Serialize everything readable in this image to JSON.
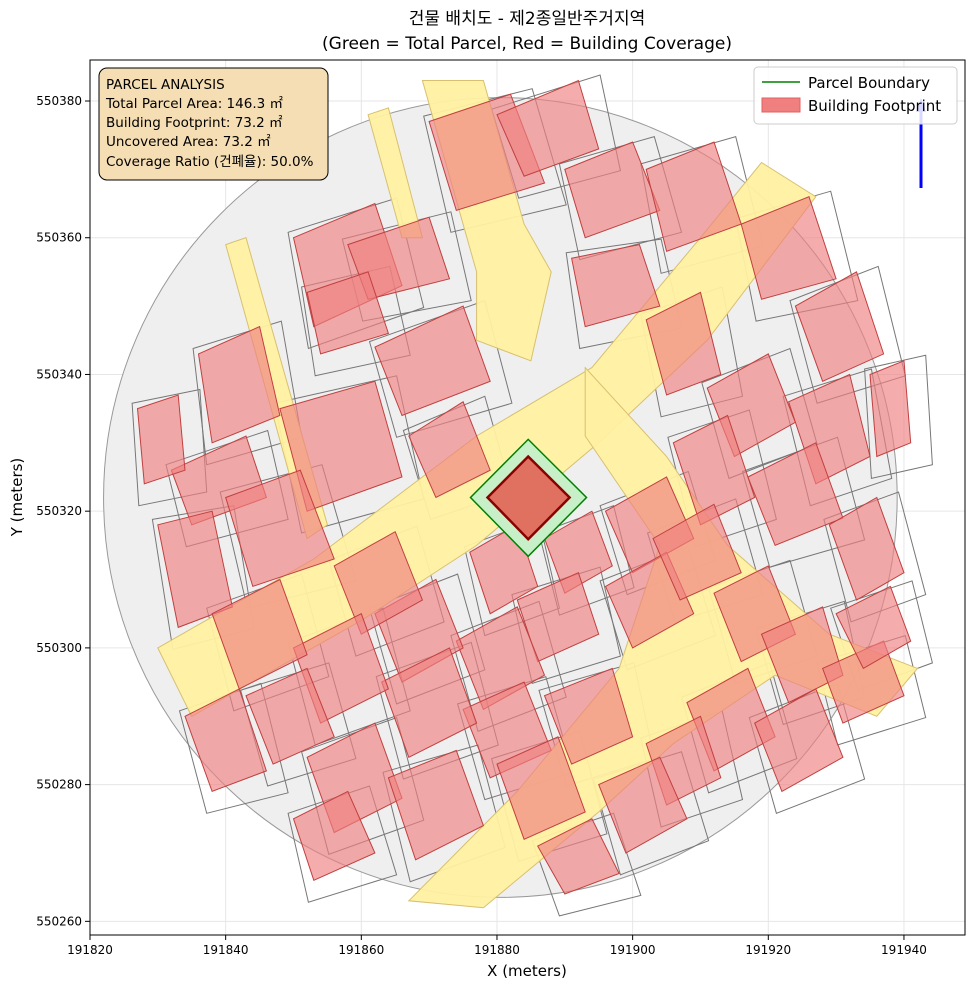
{
  "figure": {
    "title_line1": "건물 배치도 - 제2종일반주거지역",
    "title_line2": "(Green = Total Parcel, Red = Building Coverage)",
    "xlabel": "X (meters)",
    "ylabel": "Y (meters)"
  },
  "annotation": {
    "heading": "PARCEL ANALYSIS",
    "total_area": "Total Parcel Area: 146.3 ㎡",
    "footprint": "Building Footprint: 73.2 ㎡",
    "uncovered": "Uncovered Area: 73.2 ㎡",
    "coverage": "Coverage Ratio (건폐율): 50.0%"
  },
  "legend": {
    "parcel_label": "Parcel Boundary",
    "footprint_label": "Building Footprint",
    "placement": "top-right"
  },
  "colors": {
    "parcel_line": "#008000",
    "parcel_fill": "#c8f0c8",
    "building_fill": "#f08080",
    "building_edge": "#8b0000",
    "road_fill": "#fff0a0",
    "context_fill": "#efefef",
    "north_arrow": "#0000ff",
    "annotation_bg": "#f5deb3"
  },
  "chart_data": {
    "type": "map",
    "xlim": [
      191820,
      191949
    ],
    "ylim": [
      550258,
      550386
    ],
    "grid": true,
    "xticks": [
      "191820",
      "191840",
      "191860",
      "191880",
      "191900",
      "191920",
      "191940"
    ],
    "yticks": [
      "550260",
      "550280",
      "550300",
      "550320",
      "550340",
      "550360",
      "550380"
    ],
    "xtick_values": [
      191820,
      191840,
      191860,
      191880,
      191900,
      191920,
      191940
    ],
    "ytick_values": [
      550260,
      550280,
      550300,
      550320,
      550340,
      550360,
      550380
    ],
    "site_circle": {
      "cx": 191880.5,
      "cy": 550322,
      "r": 58.5
    },
    "parcel": [
      [
        191884.6,
        550330.5
      ],
      [
        191893.2,
        550322
      ],
      [
        191884.6,
        550313.4
      ],
      [
        191876.1,
        550322
      ]
    ],
    "footprint": [
      [
        191884.6,
        550328.0
      ],
      [
        191890.7,
        550322
      ],
      [
        191884.6,
        550315.9
      ],
      [
        191878.6,
        550322
      ]
    ],
    "roads": [
      [
        [
          191830,
          550300
        ],
        [
          191853,
          550313
        ],
        [
          191877,
          550331
        ],
        [
          191894,
          550341
        ],
        [
          191910,
          550360
        ],
        [
          191919,
          550371
        ],
        [
          191927,
          550366
        ],
        [
          191911,
          550345
        ],
        [
          191895,
          550330
        ],
        [
          191877,
          550315
        ],
        [
          191860,
          550304
        ],
        [
          191835,
          550290
        ]
      ],
      [
        [
          191893,
          550341
        ],
        [
          191905,
          550328
        ],
        [
          191914,
          550315
        ],
        [
          191929,
          550302
        ],
        [
          191942,
          550297
        ],
        [
          191936,
          550290
        ],
        [
          191921,
          550296
        ],
        [
          191906,
          550286
        ],
        [
          191895,
          550276
        ],
        [
          191878,
          550262
        ],
        [
          191867,
          550263
        ],
        [
          191883,
          550279
        ],
        [
          191898,
          550297
        ],
        [
          191904,
          550315
        ],
        [
          191893,
          550331
        ]
      ],
      [
        [
          191869,
          550383
        ],
        [
          191878,
          550383
        ],
        [
          191884,
          550362
        ],
        [
          191888,
          550355
        ],
        [
          191885,
          550342
        ],
        [
          191877,
          550345
        ],
        [
          191877,
          550355
        ]
      ],
      [
        [
          191840,
          550359
        ],
        [
          191843,
          550360
        ],
        [
          191855,
          550318
        ],
        [
          191852,
          550316
        ]
      ],
      [
        [
          191861,
          550378
        ],
        [
          191864,
          550379
        ],
        [
          191869,
          550360
        ],
        [
          191866,
          550360
        ]
      ]
    ],
    "context_buildings": [
      [
        [
          191850,
          550360
        ],
        [
          191862,
          550365
        ],
        [
          191866,
          550353
        ],
        [
          191853,
          550347
        ]
      ],
      [
        [
          191858,
          550359
        ],
        [
          191870,
          550363
        ],
        [
          191873,
          550354
        ],
        [
          191861,
          550351
        ]
      ],
      [
        [
          191836,
          550343
        ],
        [
          191845,
          550347
        ],
        [
          191848,
          550334
        ],
        [
          191838,
          550330
        ]
      ],
      [
        [
          191852,
          550352
        ],
        [
          191861,
          550355
        ],
        [
          191864,
          550346
        ],
        [
          191854,
          550343
        ]
      ],
      [
        [
          191862,
          550344
        ],
        [
          191875,
          550350
        ],
        [
          191879,
          550339
        ],
        [
          191866,
          550334
        ]
      ],
      [
        [
          191848,
          550335
        ],
        [
          191862,
          550339
        ],
        [
          191866,
          550325
        ],
        [
          191852,
          550320
        ]
      ],
      [
        [
          191832,
          550326
        ],
        [
          191843,
          550331
        ],
        [
          191846,
          550322
        ],
        [
          191835,
          550318
        ]
      ],
      [
        [
          191830,
          550318
        ],
        [
          191838,
          550320
        ],
        [
          191841,
          550306
        ],
        [
          191833,
          550303
        ]
      ],
      [
        [
          191840,
          550322
        ],
        [
          191851,
          550326
        ],
        [
          191856,
          550313
        ],
        [
          191844,
          550309
        ]
      ],
      [
        [
          191827,
          550335
        ],
        [
          191833,
          550337
        ],
        [
          191834,
          550326
        ],
        [
          191828,
          550324
        ]
      ],
      [
        [
          191867,
          550331
        ],
        [
          191875,
          550336
        ],
        [
          191879,
          550326
        ],
        [
          191871,
          550322
        ]
      ],
      [
        [
          191870,
          550377
        ],
        [
          191882,
          550381
        ],
        [
          191887,
          550368
        ],
        [
          191874,
          550364
        ]
      ],
      [
        [
          191880,
          550378
        ],
        [
          191892,
          550383
        ],
        [
          191895,
          550373
        ],
        [
          191884,
          550369
        ]
      ],
      [
        [
          191890,
          550370
        ],
        [
          191900,
          550374
        ],
        [
          191904,
          550364
        ],
        [
          191893,
          550360
        ]
      ],
      [
        [
          191902,
          550370
        ],
        [
          191912,
          550374
        ],
        [
          191916,
          550362
        ],
        [
          191905,
          550358
        ]
      ],
      [
        [
          191891,
          550357
        ],
        [
          191901,
          550359
        ],
        [
          191904,
          550350
        ],
        [
          191893,
          550347
        ]
      ],
      [
        [
          191916,
          550362
        ],
        [
          191926,
          550366
        ],
        [
          191930,
          550354
        ],
        [
          191919,
          550351
        ]
      ],
      [
        [
          191902,
          550348
        ],
        [
          191910,
          550352
        ],
        [
          191913,
          550340
        ],
        [
          191905,
          550337
        ]
      ],
      [
        [
          191924,
          550350
        ],
        [
          191933,
          550355
        ],
        [
          191937,
          550343
        ],
        [
          191928,
          550339
        ]
      ],
      [
        [
          191911,
          550338
        ],
        [
          191920,
          550343
        ],
        [
          191924,
          550333
        ],
        [
          191915,
          550328
        ]
      ],
      [
        [
          191923,
          550336
        ],
        [
          191932,
          550340
        ],
        [
          191935,
          550328
        ],
        [
          191927,
          550324
        ]
      ],
      [
        [
          191935,
          550340
        ],
        [
          191940,
          550342
        ],
        [
          191941,
          550330
        ],
        [
          191936,
          550328
        ]
      ],
      [
        [
          191906,
          550330
        ],
        [
          191914,
          550334
        ],
        [
          191918,
          550322
        ],
        [
          191910,
          550318
        ]
      ],
      [
        [
          191917,
          550325
        ],
        [
          191927,
          550330
        ],
        [
          191931,
          550319
        ],
        [
          191921,
          550315
        ]
      ],
      [
        [
          191929,
          550318
        ],
        [
          191936,
          550322
        ],
        [
          191940,
          550311
        ],
        [
          191933,
          550307
        ]
      ],
      [
        [
          191896,
          550320
        ],
        [
          191905,
          550325
        ],
        [
          191909,
          550316
        ],
        [
          191900,
          550311
        ]
      ],
      [
        [
          191887,
          550316
        ],
        [
          191894,
          550320
        ],
        [
          191897,
          550312
        ],
        [
          191890,
          550308
        ]
      ],
      [
        [
          191876,
          550314
        ],
        [
          191883,
          550318
        ],
        [
          191886,
          550309
        ],
        [
          191879,
          550305
        ]
      ],
      [
        [
          191883,
          550307
        ],
        [
          191892,
          550311
        ],
        [
          191895,
          550302
        ],
        [
          191886,
          550298
        ]
      ],
      [
        [
          191896,
          550309
        ],
        [
          191905,
          550314
        ],
        [
          191909,
          550305
        ],
        [
          191900,
          550300
        ]
      ],
      [
        [
          191903,
          550316
        ],
        [
          191912,
          550321
        ],
        [
          191916,
          550311
        ],
        [
          191907,
          550307
        ]
      ],
      [
        [
          191912,
          550308
        ],
        [
          191920,
          550312
        ],
        [
          191924,
          550302
        ],
        [
          191916,
          550298
        ]
      ],
      [
        [
          191919,
          550302
        ],
        [
          191928,
          550306
        ],
        [
          191931,
          550296
        ],
        [
          191923,
          550292
        ]
      ],
      [
        [
          191928,
          550297
        ],
        [
          191937,
          550301
        ],
        [
          191940,
          550293
        ],
        [
          191931,
          550289
        ]
      ],
      [
        [
          191930,
          550305
        ],
        [
          191938,
          550309
        ],
        [
          191941,
          550301
        ],
        [
          191934,
          550297
        ]
      ],
      [
        [
          191908,
          550292
        ],
        [
          191917,
          550297
        ],
        [
          191921,
          550287
        ],
        [
          191912,
          550282
        ]
      ],
      [
        [
          191918,
          550289
        ],
        [
          191927,
          550294
        ],
        [
          191931,
          550284
        ],
        [
          191922,
          550279
        ]
      ],
      [
        [
          191902,
          550286
        ],
        [
          191910,
          550290
        ],
        [
          191913,
          550281
        ],
        [
          191905,
          550277
        ]
      ],
      [
        [
          191895,
          550280
        ],
        [
          191904,
          550284
        ],
        [
          191908,
          550275
        ],
        [
          191899,
          550270
        ]
      ],
      [
        [
          191887,
          550293
        ],
        [
          191897,
          550297
        ],
        [
          191900,
          550287
        ],
        [
          191891,
          550283
        ]
      ],
      [
        [
          191874,
          550301
        ],
        [
          191883,
          550306
        ],
        [
          191887,
          550296
        ],
        [
          191878,
          550291
        ]
      ],
      [
        [
          191875,
          550291
        ],
        [
          191884,
          550295
        ],
        [
          191888,
          550285
        ],
        [
          191879,
          550281
        ]
      ],
      [
        [
          191862,
          550305
        ],
        [
          191871,
          550310
        ],
        [
          191875,
          550300
        ],
        [
          191866,
          550295
        ]
      ],
      [
        [
          191856,
          550312
        ],
        [
          191865,
          550317
        ],
        [
          191869,
          550307
        ],
        [
          191860,
          550302
        ]
      ],
      [
        [
          191863,
          550295
        ],
        [
          191873,
          550300
        ],
        [
          191877,
          550289
        ],
        [
          191867,
          550284
        ]
      ],
      [
        [
          191850,
          550300
        ],
        [
          191860,
          550305
        ],
        [
          191864,
          550294
        ],
        [
          191854,
          550289
        ]
      ],
      [
        [
          191838,
          550305
        ],
        [
          191848,
          550310
        ],
        [
          191852,
          550299
        ],
        [
          191842,
          550294
        ]
      ],
      [
        [
          191843,
          550293
        ],
        [
          191852,
          550297
        ],
        [
          191856,
          550287
        ],
        [
          191847,
          550283
        ]
      ],
      [
        [
          191834,
          550290
        ],
        [
          191842,
          550294
        ],
        [
          191846,
          550282
        ],
        [
          191838,
          550279
        ]
      ],
      [
        [
          191852,
          550284
        ],
        [
          191862,
          550289
        ],
        [
          191866,
          550278
        ],
        [
          191856,
          550273
        ]
      ],
      [
        [
          191864,
          550281
        ],
        [
          191874,
          550285
        ],
        [
          191878,
          550274
        ],
        [
          191868,
          550269
        ]
      ],
      [
        [
          191880,
          550283
        ],
        [
          191889,
          550287
        ],
        [
          191893,
          550276
        ],
        [
          191884,
          550272
        ]
      ],
      [
        [
          191886,
          550271
        ],
        [
          191894,
          550275
        ],
        [
          191898,
          550267
        ],
        [
          191890,
          550264
        ]
      ],
      [
        [
          191850,
          550275
        ],
        [
          191858,
          550279
        ],
        [
          191862,
          550270
        ],
        [
          191853,
          550266
        ]
      ]
    ]
  }
}
